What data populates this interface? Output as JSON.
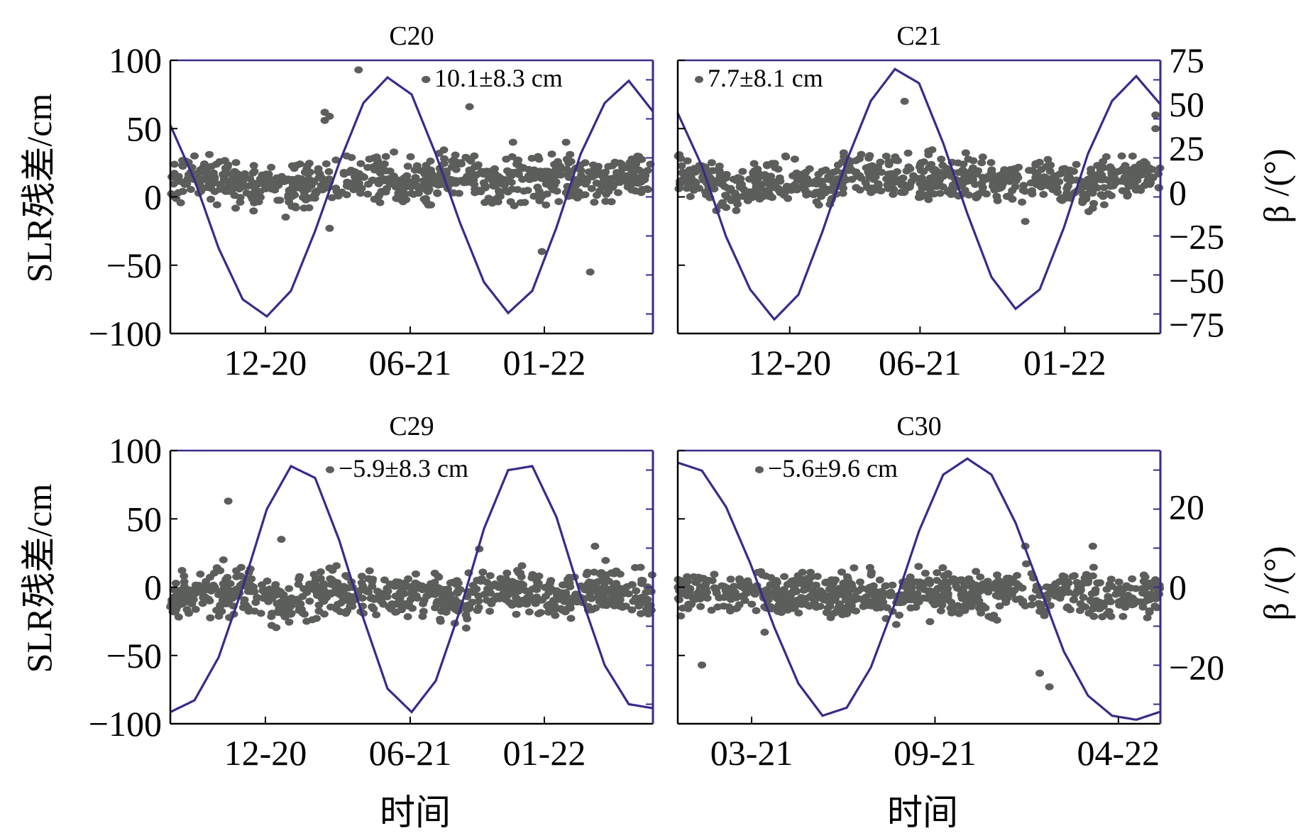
{
  "figure": {
    "y_left_label": "SLR残差/cm",
    "y_right_label": "β /(°)",
    "x_label": "时间"
  },
  "chart_data": [
    {
      "type": "scatter",
      "title": "C20",
      "annotation": "10.1±8.3 cm",
      "xlabel": "",
      "ylabel": "SLR残差/cm",
      "ylim": [
        -100,
        100
      ],
      "yticks": [
        -100,
        -50,
        0,
        50,
        100
      ],
      "xtick_labels": [
        "12-20",
        "06-21",
        "01-22"
      ],
      "y2label": "",
      "y2lim": [
        -80,
        80
      ],
      "y2ticks": [],
      "colors": {
        "residual": "#5b5e5a",
        "beta": "#3b2a8a",
        "axis": "#000000",
        "right_axis": "#3b2a8a"
      },
      "series": [
        {
          "kind": "residual",
          "x": [
            0.0,
            0.05,
            0.1,
            0.15,
            0.2,
            0.25,
            0.3,
            0.35,
            0.4,
            0.45,
            0.5,
            0.55,
            0.6,
            0.65,
            0.7,
            0.75,
            0.8,
            0.85,
            0.9,
            0.95,
            1.0
          ],
          "y": [
            10,
            15,
            12,
            8,
            6,
            4,
            10,
            12,
            14,
            13,
            10,
            16,
            15,
            12,
            11,
            14,
            13,
            12,
            14,
            16,
            12
          ]
        },
        {
          "kind": "beta",
          "x": [
            0.0,
            0.05,
            0.1,
            0.15,
            0.2,
            0.25,
            0.3,
            0.35,
            0.4,
            0.45,
            0.5,
            0.55,
            0.6,
            0.65,
            0.7,
            0.75,
            0.8,
            0.85,
            0.9,
            0.95,
            1.0
          ],
          "y": [
            42,
            10,
            -30,
            -60,
            -70,
            -55,
            -20,
            20,
            55,
            70,
            60,
            25,
            -15,
            -50,
            -68,
            -55,
            -18,
            25,
            55,
            68,
            50
          ]
        }
      ],
      "outliers": [
        [
          0.39,
          93
        ],
        [
          0.53,
          86
        ],
        [
          0.62,
          66
        ],
        [
          0.32,
          62
        ],
        [
          0.32,
          56
        ],
        [
          0.33,
          59
        ],
        [
          0.71,
          40
        ],
        [
          0.82,
          40
        ],
        [
          0.77,
          -40
        ],
        [
          0.87,
          -55
        ],
        [
          0.33,
          -23
        ],
        [
          0.05,
          30
        ],
        [
          0.26,
          -8
        ]
      ]
    },
    {
      "type": "scatter",
      "title": "C21",
      "annotation": "7.7±8.1 cm",
      "xlabel": "",
      "ylabel": "",
      "ylim": [
        -100,
        100
      ],
      "yticks": [],
      "xtick_labels": [
        "12-20",
        "06-21",
        "01-22"
      ],
      "y2label": "β /(°)",
      "y2lim": [
        -80,
        75
      ],
      "y2ticks": [
        -75,
        -50,
        -25,
        0,
        25,
        50,
        75
      ],
      "colors": {
        "residual": "#5b5e5a",
        "beta": "#3b2a8a",
        "axis": "#000000",
        "right_axis": "#3b2a8a"
      },
      "series": [
        {
          "kind": "residual",
          "x": [
            0.0,
            0.05,
            0.1,
            0.15,
            0.2,
            0.25,
            0.3,
            0.35,
            0.4,
            0.45,
            0.5,
            0.55,
            0.6,
            0.65,
            0.7,
            0.75,
            0.8,
            0.85,
            0.9,
            0.95,
            1.0
          ],
          "y": [
            20,
            12,
            8,
            6,
            14,
            10,
            8,
            15,
            16,
            14,
            12,
            15,
            14,
            10,
            12,
            14,
            12,
            10,
            12,
            14,
            15
          ]
        },
        {
          "kind": "beta",
          "x": [
            0.0,
            0.05,
            0.1,
            0.15,
            0.2,
            0.25,
            0.3,
            0.35,
            0.4,
            0.45,
            0.5,
            0.55,
            0.6,
            0.65,
            0.7,
            0.75,
            0.8,
            0.85,
            0.9,
            0.95,
            1.0
          ],
          "y": [
            45,
            15,
            -25,
            -55,
            -72,
            -58,
            -22,
            18,
            52,
            70,
            62,
            28,
            -12,
            -48,
            -66,
            -55,
            -20,
            22,
            52,
            66,
            50
          ]
        }
      ],
      "outliers": [
        [
          0.47,
          70
        ],
        [
          0.99,
          60
        ],
        [
          0.99,
          50
        ],
        [
          0.08,
          -10
        ],
        [
          0.72,
          -18
        ],
        [
          0.92,
          30
        ]
      ]
    },
    {
      "type": "scatter",
      "title": "C29",
      "annotation": "−5.9±8.3 cm",
      "xlabel": "时间",
      "ylabel": "SLR残差/cm",
      "ylim": [
        -100,
        100
      ],
      "yticks": [
        -100,
        -50,
        0,
        50,
        100
      ],
      "xtick_labels": [
        "12-20",
        "06-21",
        "01-22"
      ],
      "y2label": "",
      "y2lim": [
        -35,
        35
      ],
      "y2ticks": [],
      "colors": {
        "residual": "#5b5e5a",
        "beta": "#3b2a8a",
        "axis": "#000000",
        "right_axis": "#3b2a8a"
      },
      "series": [
        {
          "kind": "residual",
          "x": [
            0.0,
            0.05,
            0.1,
            0.15,
            0.2,
            0.25,
            0.3,
            0.35,
            0.4,
            0.45,
            0.5,
            0.55,
            0.6,
            0.65,
            0.7,
            0.75,
            0.8,
            0.85,
            0.9,
            0.95,
            1.0
          ],
          "y": [
            -8,
            -6,
            -4,
            -2,
            -10,
            -12,
            -6,
            -5,
            -4,
            -8,
            -6,
            -4,
            -10,
            -6,
            -2,
            -4,
            -6,
            -5,
            0,
            -4,
            -6
          ]
        },
        {
          "kind": "beta",
          "x": [
            0.0,
            0.05,
            0.1,
            0.15,
            0.2,
            0.25,
            0.3,
            0.35,
            0.4,
            0.45,
            0.5,
            0.55,
            0.6,
            0.65,
            0.7,
            0.75,
            0.8,
            0.85,
            0.9,
            0.95,
            1.0
          ],
          "y": [
            -32,
            -29,
            -18,
            0,
            20,
            31,
            28,
            12,
            -8,
            -26,
            -32,
            -24,
            -6,
            15,
            30,
            31,
            18,
            -2,
            -20,
            -30,
            -31
          ]
        }
      ],
      "outliers": [
        [
          0.12,
          63
        ],
        [
          0.23,
          35
        ],
        [
          0.33,
          14
        ],
        [
          0.64,
          28
        ],
        [
          0.88,
          30
        ],
        [
          0.21,
          -28
        ],
        [
          0.56,
          -25
        ],
        [
          0.11,
          20
        ]
      ]
    },
    {
      "type": "scatter",
      "title": "C30",
      "annotation": "−5.6±9.6 cm",
      "xlabel": "时间",
      "ylabel": "",
      "ylim": [
        -100,
        100
      ],
      "yticks": [],
      "xtick_labels": [
        "03-21",
        "09-21",
        "04-22"
      ],
      "y2label": "β /(°)",
      "y2lim": [
        -34,
        34
      ],
      "y2ticks": [
        -20,
        0,
        20
      ],
      "colors": {
        "residual": "#5b5e5a",
        "beta": "#3b2a8a",
        "axis": "#000000",
        "right_axis": "#3b2a8a"
      },
      "series": [
        {
          "kind": "residual",
          "x": [
            0.0,
            0.05,
            0.1,
            0.15,
            0.2,
            0.25,
            0.3,
            0.35,
            0.4,
            0.45,
            0.5,
            0.55,
            0.6,
            0.65,
            0.7,
            0.75,
            0.8,
            0.85,
            0.9,
            0.95,
            1.0
          ],
          "y": [
            -6,
            -4,
            -8,
            -2,
            -6,
            -4,
            -5,
            -6,
            -3,
            -8,
            -5,
            -4,
            -6,
            -4,
            -2,
            -6,
            0,
            -4,
            -8,
            -5,
            -6
          ]
        },
        {
          "kind": "beta",
          "x": [
            0.0,
            0.05,
            0.1,
            0.15,
            0.2,
            0.25,
            0.3,
            0.35,
            0.4,
            0.45,
            0.5,
            0.55,
            0.6,
            0.65,
            0.7,
            0.75,
            0.8,
            0.85,
            0.9,
            0.95,
            1.0
          ],
          "y": [
            31,
            29,
            20,
            6,
            -10,
            -24,
            -32,
            -30,
            -20,
            -4,
            14,
            28,
            32,
            28,
            16,
            0,
            -16,
            -27,
            -32,
            -33,
            -31
          ]
        }
      ],
      "outliers": [
        [
          0.05,
          -57
        ],
        [
          0.75,
          -63
        ],
        [
          0.77,
          -73
        ],
        [
          0.72,
          30
        ],
        [
          0.86,
          30
        ],
        [
          0.18,
          -33
        ],
        [
          0.56,
          10
        ]
      ]
    }
  ]
}
